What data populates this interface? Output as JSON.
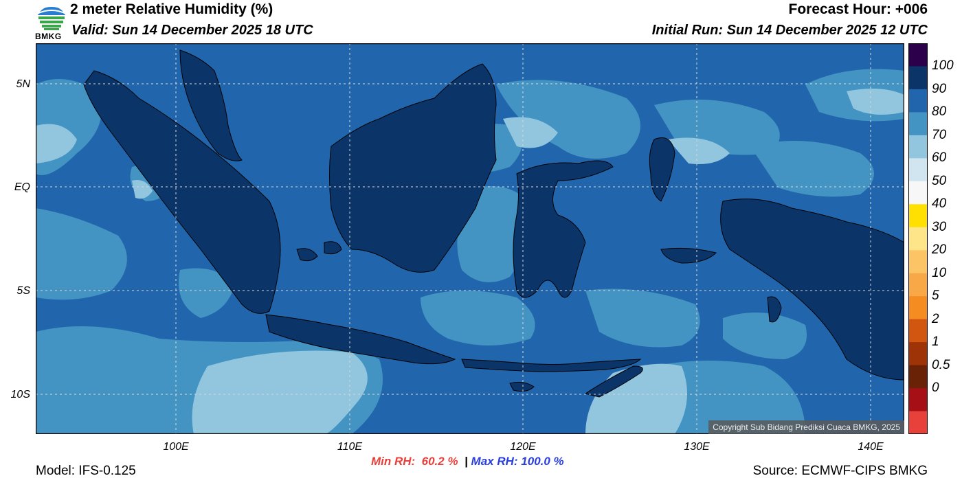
{
  "header": {
    "title": "2 meter Relative Humidity (%)",
    "valid": "Valid: Sun 14 December 2025 18 UTC",
    "forecast_hour": "Forecast Hour: +006",
    "initial_run": "Initial Run: Sun 14 December 2025 12 UTC"
  },
  "logo": {
    "text": "BMKG"
  },
  "map": {
    "lat_labels": [
      "5N",
      "EQ",
      "5S",
      "10S"
    ],
    "lon_labels": [
      "100E",
      "110E",
      "120E",
      "130E",
      "140E"
    ],
    "copyright": "Copyright Sub Bidang Prediksi Cuaca BMKG, 2025",
    "colors": {
      "sea_80_90": "#2166ac",
      "sea_70_80": "#4393c3",
      "sea_60_70": "#92c5de",
      "land_90_100": "#0b3468",
      "border": "#000000",
      "grid": "#d8d8d8"
    }
  },
  "colorbar": {
    "labels": [
      "100",
      "90",
      "80",
      "70",
      "60",
      "50",
      "40",
      "30",
      "20",
      "10",
      "5",
      "2",
      "1",
      "0.5",
      "0"
    ],
    "colors_top_to_bottom": [
      "#2d004b",
      "#0b3468",
      "#2166ac",
      "#4393c3",
      "#92c5de",
      "#d1e5f0",
      "#f7f7f7",
      "#ffe000",
      "#ffe58a",
      "#fdc466",
      "#f9a848",
      "#f48c22",
      "#d25510",
      "#9e3308",
      "#6a2206",
      "#a50f15",
      "#e8403a"
    ]
  },
  "stats": {
    "min_label": "Min RH:  60.2 %",
    "separator": "|",
    "max_label": "Max RH: 100.0 %"
  },
  "footer": {
    "model": "Model: IFS-0.125",
    "source": "Source: ECMWF-CIPS BMKG"
  }
}
